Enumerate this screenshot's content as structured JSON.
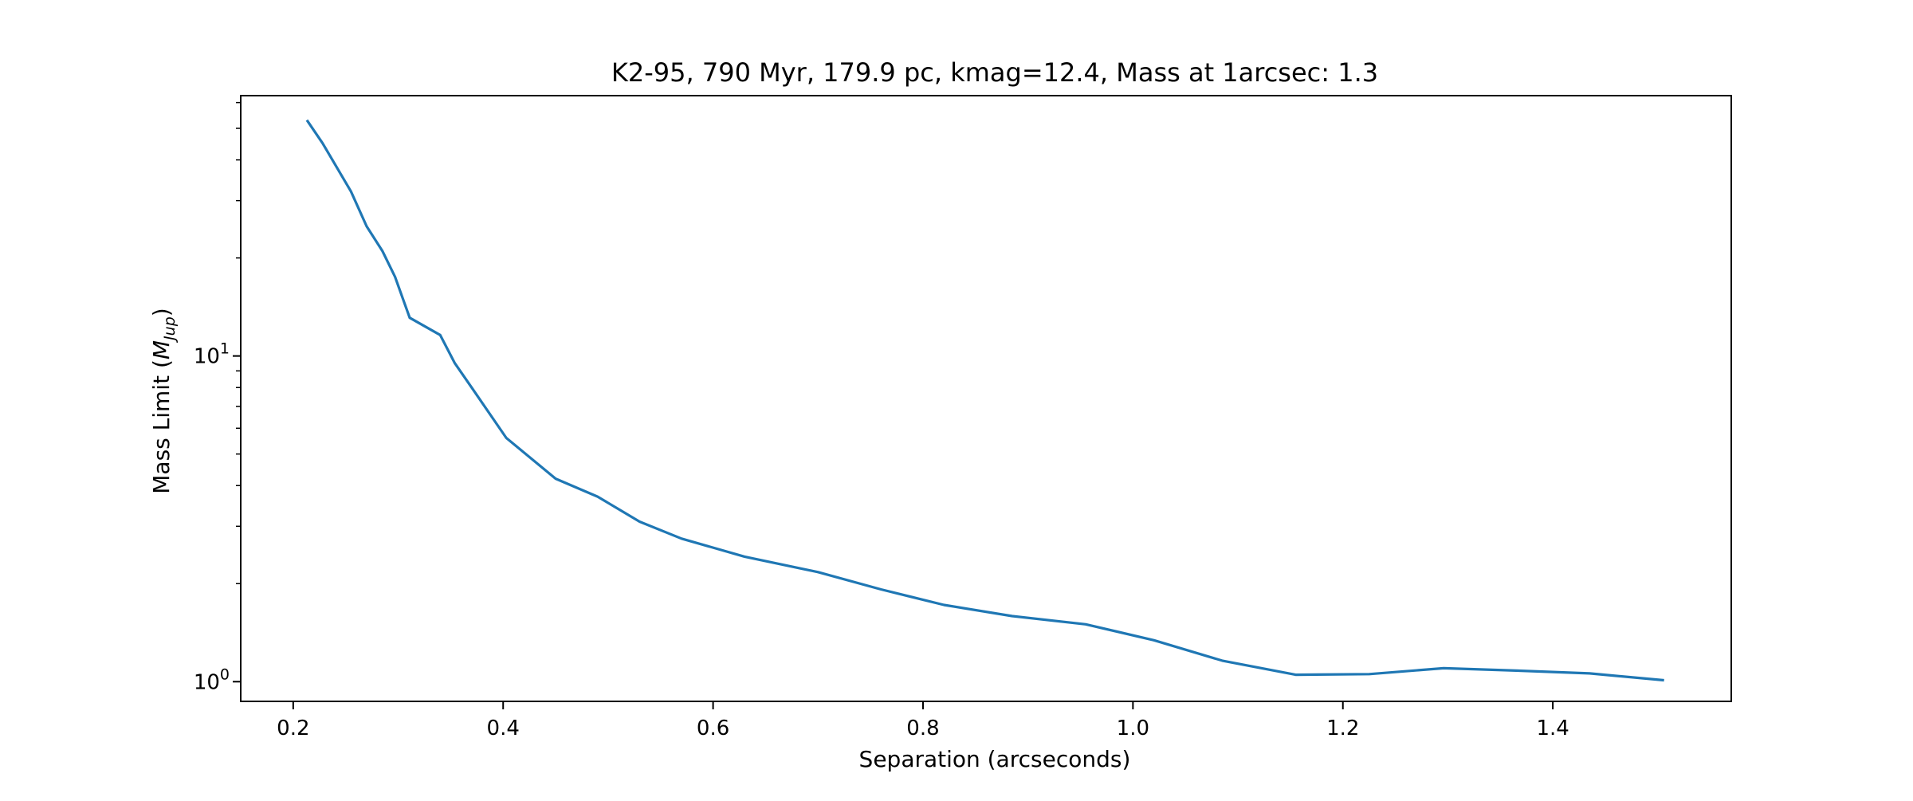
{
  "chart_data": {
    "type": "line",
    "title": "K2-95, 790 Myr, 179.9 pc, kmag=12.4, Mass at 1arcsec: 1.3",
    "xlabel": "Separation (arcseconds)",
    "ylabel_prefix": "Mass Limit (",
    "ylabel_symbol": "M",
    "ylabel_subscript": "Jup",
    "ylabel_suffix": ")",
    "y_scale": "log",
    "xlim": [
      0.15,
      1.57
    ],
    "ylim": [
      0.87,
      63
    ],
    "x_ticks": [
      0.2,
      0.4,
      0.6,
      0.8,
      1.0,
      1.2,
      1.4
    ],
    "x_tick_labels": [
      "0.2",
      "0.4",
      "0.6",
      "0.8",
      "1.0",
      "1.2",
      "1.4"
    ],
    "y_major_ticks": [
      {
        "value": 1,
        "base": "10",
        "exponent": "0"
      },
      {
        "value": 10,
        "base": "10",
        "exponent": "1"
      }
    ],
    "y_minor_ticks": [
      2,
      3,
      4,
      5,
      6,
      7,
      8,
      9,
      20,
      30,
      40,
      50,
      60
    ],
    "grid": false,
    "series": [
      {
        "color": "#1f77b4",
        "x": [
          0.213,
          0.228,
          0.255,
          0.27,
          0.285,
          0.297,
          0.311,
          0.34,
          0.354,
          0.37,
          0.403,
          0.45,
          0.49,
          0.53,
          0.57,
          0.63,
          0.7,
          0.76,
          0.82,
          0.885,
          0.955,
          1.02,
          1.085,
          1.155,
          1.225,
          1.296,
          1.37,
          1.435,
          1.506
        ],
        "y": [
          53.0,
          45.0,
          32.0,
          25.0,
          21.0,
          17.5,
          13.1,
          11.6,
          9.5,
          8.0,
          5.6,
          4.2,
          3.7,
          3.1,
          2.75,
          2.42,
          2.17,
          1.92,
          1.72,
          1.59,
          1.5,
          1.34,
          1.16,
          1.05,
          1.055,
          1.1,
          1.08,
          1.06,
          1.01
        ]
      }
    ]
  }
}
